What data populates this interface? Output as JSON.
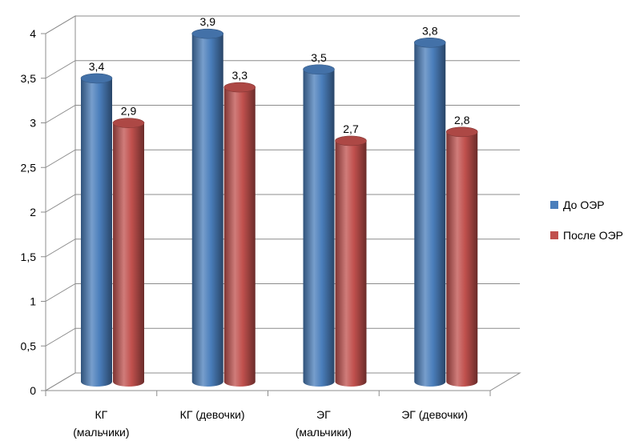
{
  "chart_data": {
    "type": "bar",
    "categories": [
      [
        "КГ",
        "(мальчики)"
      ],
      [
        "КГ (девочки)"
      ],
      [
        "ЭГ",
        "(мальчики)"
      ],
      [
        "ЭГ (девочки)"
      ]
    ],
    "series": [
      {
        "name": "До ОЭР",
        "values": [
          3.4,
          3.9,
          3.5,
          3.8
        ],
        "labels": [
          "3,4",
          "3,9",
          "3,5",
          "3,8"
        ],
        "color": "#4a7ebb"
      },
      {
        "name": "После ОЭР",
        "values": [
          2.9,
          3.3,
          2.7,
          2.8
        ],
        "labels": [
          "2,9",
          "3,3",
          "2,7",
          "2,8"
        ],
        "color": "#c0504d"
      }
    ],
    "ylim": [
      0,
      4
    ],
    "yticks": [
      0,
      0.5,
      1,
      1.5,
      2,
      2.5,
      3,
      3.5,
      4
    ],
    "ytick_labels": [
      "0",
      "0,5",
      "1",
      "1,5",
      "2",
      "2,5",
      "3",
      "3,5",
      "4"
    ],
    "grid": true,
    "legend_position": "right",
    "style": "3d-cylinder"
  }
}
